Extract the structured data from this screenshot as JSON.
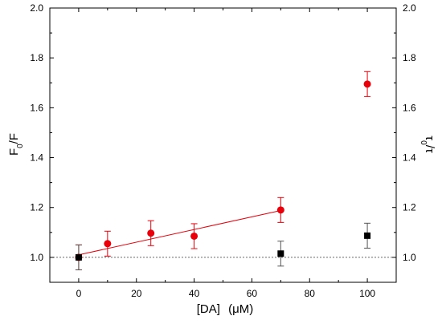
{
  "chart_data": {
    "type": "scatter",
    "xlabel_main": "[DA]",
    "xlabel_unit": "(μM)",
    "ylabel_left": {
      "base": "F",
      "sub": "0",
      "rest": "/F"
    },
    "ylabel_right": {
      "base": "τ",
      "sub": "0",
      "rest": "/τ"
    },
    "xlim": [
      -10,
      110
    ],
    "ylim": [
      0.9,
      2.0
    ],
    "xticks": [
      0,
      20,
      40,
      60,
      80,
      100
    ],
    "xtick_labels": [
      "0",
      "20",
      "40",
      "60",
      "80",
      "100"
    ],
    "yticks": [
      1.0,
      1.2,
      1.4,
      1.6,
      1.8,
      2.0
    ],
    "ytick_labels": [
      "1.0",
      "1.2",
      "1.4",
      "1.6",
      "1.8",
      "2.0"
    ],
    "reference_line_y": 1.0,
    "series": [
      {
        "marker": "circle",
        "color": "#e8000b",
        "points": [
          {
            "x": 0,
            "y": 1.0,
            "err": 0.05
          },
          {
            "x": 10,
            "y": 1.055,
            "err": 0.05
          },
          {
            "x": 25,
            "y": 1.097,
            "err": 0.05
          },
          {
            "x": 40,
            "y": 1.085,
            "err": 0.05
          },
          {
            "x": 70,
            "y": 1.19,
            "err": 0.05
          },
          {
            "x": 100,
            "y": 1.695,
            "err": 0.05
          }
        ],
        "fit_line": {
          "x": [
            0,
            70
          ],
          "y": [
            1.01,
            1.188
          ]
        }
      },
      {
        "marker": "square",
        "color": "#000000",
        "points": [
          {
            "x": 0,
            "y": 1.0,
            "err": 0.05
          },
          {
            "x": 70,
            "y": 1.015,
            "err": 0.05
          },
          {
            "x": 100,
            "y": 1.087,
            "err": 0.05
          }
        ]
      }
    ]
  }
}
